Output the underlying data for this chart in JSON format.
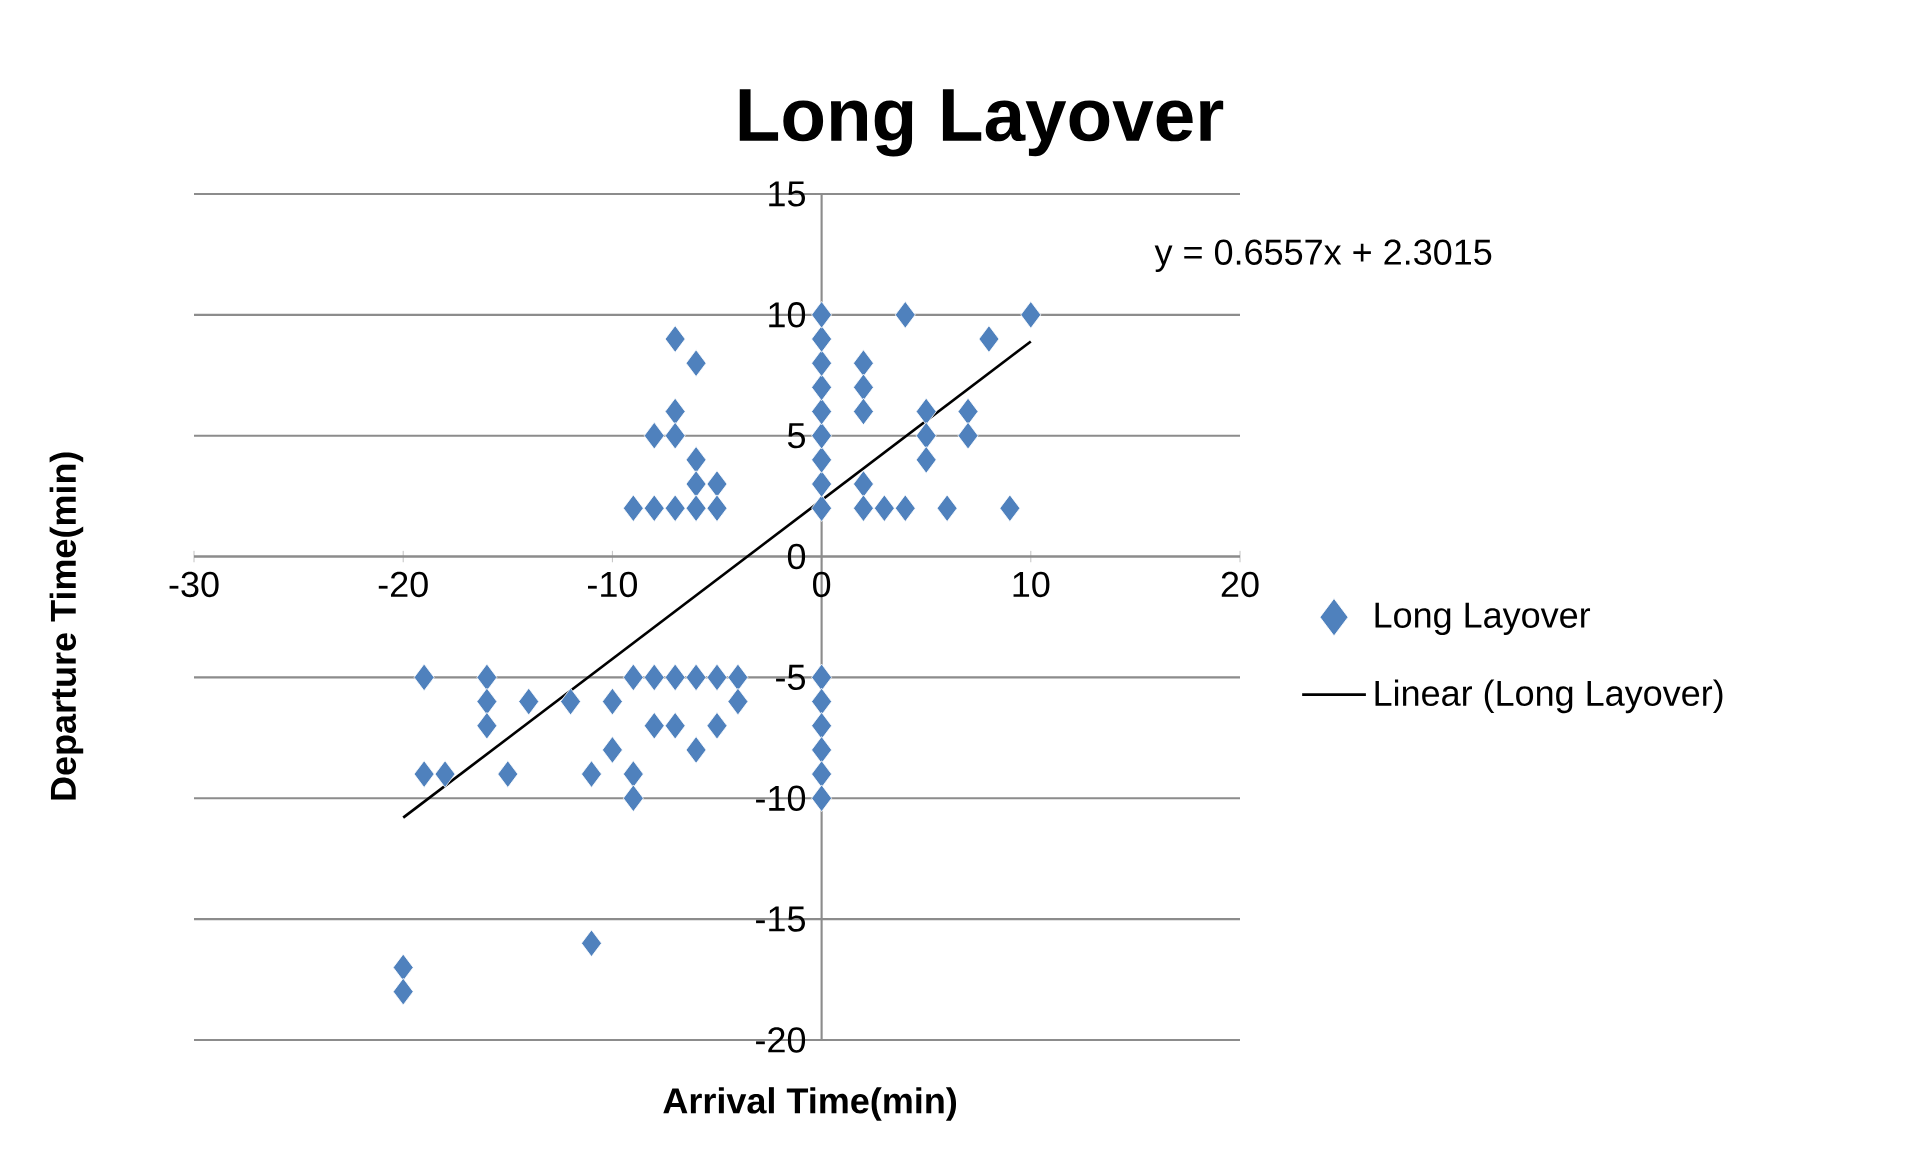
{
  "chart_data": {
    "type": "scatter",
    "title": "Long Layover",
    "xlabel": "Arrival Time(min)",
    "ylabel": "Departure Time(min)",
    "xlim": [
      -30,
      20
    ],
    "xticks": [
      -30,
      -20,
      -10,
      0,
      10,
      20
    ],
    "ylim": [
      -20,
      15
    ],
    "yticks": [
      -20,
      -15,
      -10,
      -5,
      0,
      5,
      10,
      15
    ],
    "grid": "y",
    "legend": "right",
    "annotations": [
      "y = 0.6557x + 2.3015"
    ],
    "series": [
      {
        "name": "Long Layover",
        "color": "#4f81bd",
        "marker": "diamond",
        "x": [
          0,
          0,
          0,
          0,
          0,
          0,
          0,
          0,
          0,
          -7,
          -6,
          -7,
          -8,
          -7,
          -6,
          -6,
          -5,
          -9,
          -8,
          -7,
          -6,
          -5,
          2,
          2,
          2,
          2,
          2,
          3,
          4,
          4,
          5,
          5,
          5,
          6,
          7,
          7,
          8,
          9,
          10,
          0,
          0,
          0,
          0,
          0,
          0,
          -19,
          -16,
          -16,
          -16,
          -14,
          -12,
          -10,
          -9,
          -8,
          -7,
          -6,
          -5,
          -4,
          -8,
          -7,
          -5,
          -4,
          -6,
          -5,
          -19,
          -18,
          -15,
          -11,
          -10,
          -9,
          -9,
          -11,
          -20,
          -20
        ],
        "values": [
          2,
          3,
          4,
          5,
          6,
          7,
          8,
          9,
          10,
          9,
          8,
          6,
          5,
          5,
          4,
          3,
          3,
          2,
          2,
          2,
          2,
          2,
          8,
          7,
          6,
          3,
          2,
          2,
          2,
          10,
          6,
          5,
          4,
          2,
          6,
          5,
          9,
          2,
          10,
          -5,
          -6,
          -7,
          -8,
          -9,
          -10,
          -5,
          -5,
          -6,
          -7,
          -6,
          -6,
          -6,
          -5,
          -5,
          -5,
          -5,
          -5,
          -5,
          -7,
          -7,
          -7,
          -6,
          -8,
          -7,
          -9,
          -9,
          -9,
          -9,
          -8,
          -9,
          -10,
          -16,
          -17,
          -18
        ]
      },
      {
        "name": "Linear (Long Layover)",
        "type": "line",
        "color": "#000000",
        "marker": "none",
        "line_style": "solid",
        "x": [
          -20,
          10
        ],
        "values": [
          -10.8,
          8.9
        ]
      }
    ]
  }
}
